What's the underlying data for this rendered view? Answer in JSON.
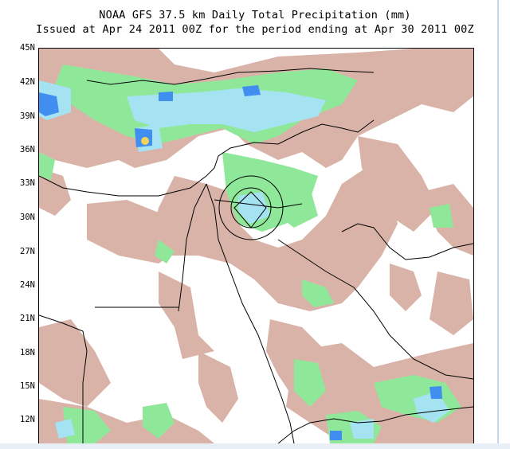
{
  "title": {
    "line1": "NOAA GFS 37.5 km Daily Total Precipitation (mm)",
    "line2": "Issued at Apr 24 2011 00Z for the period ending at Apr 30 2011 00Z"
  },
  "lat_labels": [
    "45N",
    "42N",
    "39N",
    "36N",
    "33N",
    "30N",
    "27N",
    "24N",
    "21N",
    "18N",
    "15N",
    "12N"
  ],
  "colors": {
    "light_precip": "#d9b3a8",
    "moderate_precip": "#8fe89a",
    "heavy_precip": "#a6e3f2",
    "very_heavy_precip": "#3f8ef0",
    "extreme_precip": "#f4d35a",
    "coastline": "#000000"
  }
}
